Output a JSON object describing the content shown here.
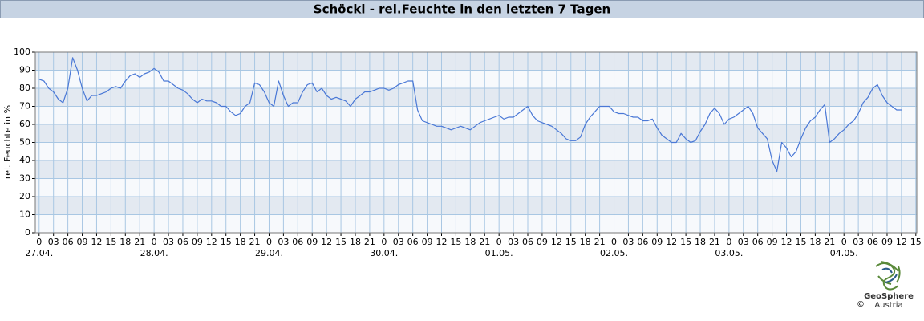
{
  "chart_data": {
    "type": "line",
    "title": "Schöckl - rel.Feuchte in den letzten 7 Tagen",
    "ylabel": "rel. Feuchte in %",
    "color": "#4a78d6",
    "grid": true,
    "ylim": [
      0,
      100
    ],
    "yticks": [
      0,
      10,
      20,
      30,
      40,
      50,
      60,
      70,
      80,
      90,
      100
    ],
    "xlim": [
      -0.8,
      183.2
    ],
    "xticks": [
      0,
      {
        "value": 3,
        "label": "03"
      },
      {
        "value": 6,
        "label": "06"
      },
      {
        "value": 9,
        "label": "09"
      },
      12,
      15,
      18,
      21,
      {
        "value": 24,
        "label": "0"
      },
      {
        "value": 27,
        "label": "03"
      },
      {
        "value": 30,
        "label": "06"
      },
      {
        "value": 33,
        "label": "09"
      },
      {
        "value": 36,
        "label": "12"
      },
      {
        "value": 39,
        "label": "15"
      },
      {
        "value": 42,
        "label": "18"
      },
      {
        "value": 45,
        "label": "21"
      },
      {
        "value": 48,
        "label": "0"
      },
      {
        "value": 51,
        "label": "03"
      },
      {
        "value": 54,
        "label": "06"
      },
      {
        "value": 57,
        "label": "09"
      },
      {
        "value": 60,
        "label": "12"
      },
      {
        "value": 63,
        "label": "15"
      },
      {
        "value": 66,
        "label": "18"
      },
      {
        "value": 69,
        "label": "21"
      },
      {
        "value": 72,
        "label": "0"
      },
      {
        "value": 75,
        "label": "03"
      },
      {
        "value": 78,
        "label": "06"
      },
      {
        "value": 81,
        "label": "09"
      },
      {
        "value": 84,
        "label": "12"
      },
      {
        "value": 87,
        "label": "15"
      },
      {
        "value": 90,
        "label": "18"
      },
      {
        "value": 93,
        "label": "21"
      },
      {
        "value": 96,
        "label": "0"
      },
      {
        "value": 99,
        "label": "03"
      },
      {
        "value": 102,
        "label": "06"
      },
      {
        "value": 105,
        "label": "09"
      },
      {
        "value": 108,
        "label": "12"
      },
      {
        "value": 111,
        "label": "15"
      },
      {
        "value": 114,
        "label": "18"
      },
      {
        "value": 117,
        "label": "21"
      },
      {
        "value": 120,
        "label": "0"
      },
      {
        "value": 123,
        "label": "03"
      },
      {
        "value": 126,
        "label": "06"
      },
      {
        "value": 129,
        "label": "09"
      },
      {
        "value": 132,
        "label": "12"
      },
      {
        "value": 135,
        "label": "15"
      },
      {
        "value": 138,
        "label": "18"
      },
      {
        "value": 141,
        "label": "21"
      },
      {
        "value": 144,
        "label": "0"
      },
      {
        "value": 147,
        "label": "03"
      },
      {
        "value": 150,
        "label": "06"
      },
      {
        "value": 153,
        "label": "09"
      },
      {
        "value": 156,
        "label": "12"
      },
      {
        "value": 159,
        "label": "15"
      },
      {
        "value": 162,
        "label": "18"
      },
      {
        "value": 165,
        "label": "21"
      },
      {
        "value": 168,
        "label": "0"
      },
      {
        "value": 171,
        "label": "03"
      },
      {
        "value": 174,
        "label": "06"
      },
      {
        "value": 177,
        "label": "09"
      },
      {
        "value": 180,
        "label": "12"
      },
      {
        "value": 183,
        "label": "15"
      }
    ],
    "day_labels": [
      {
        "value": 0,
        "label": "27.04."
      },
      {
        "value": 24,
        "label": "28.04."
      },
      {
        "value": 48,
        "label": "29.04."
      },
      {
        "value": 72,
        "label": "30.04."
      },
      {
        "value": 96,
        "label": "01.05."
      },
      {
        "value": 120,
        "label": "02.05."
      },
      {
        "value": 144,
        "label": "03.05."
      },
      {
        "value": 168,
        "label": "04.05."
      }
    ],
    "x": [
      0,
      1,
      2,
      3,
      4,
      5,
      6,
      7,
      8,
      9,
      10,
      11,
      12,
      13,
      14,
      15,
      16,
      17,
      18,
      19,
      20,
      21,
      22,
      23,
      24,
      25,
      26,
      27,
      28,
      29,
      30,
      31,
      32,
      33,
      34,
      35,
      36,
      37,
      38,
      39,
      40,
      41,
      42,
      43,
      44,
      45,
      46,
      47,
      48,
      49,
      50,
      51,
      52,
      53,
      54,
      55,
      56,
      57,
      58,
      59,
      60,
      61,
      62,
      63,
      64,
      65,
      66,
      67,
      68,
      69,
      70,
      71,
      72,
      73,
      74,
      75,
      76,
      77,
      78,
      79,
      80,
      81,
      82,
      83,
      84,
      85,
      86,
      87,
      88,
      89,
      90,
      91,
      92,
      93,
      94,
      95,
      96,
      97,
      98,
      99,
      100,
      101,
      102,
      103,
      104,
      105,
      106,
      107,
      108,
      109,
      110,
      111,
      112,
      113,
      114,
      115,
      116,
      117,
      118,
      119,
      120,
      121,
      122,
      123,
      124,
      125,
      126,
      127,
      128,
      129,
      130,
      131,
      132,
      133,
      134,
      135,
      136,
      137,
      138,
      139,
      140,
      141,
      142,
      143,
      144,
      145,
      146,
      147,
      148,
      149,
      150,
      151,
      152,
      153,
      154,
      155,
      156,
      157,
      158,
      159,
      160,
      161,
      162,
      163,
      164,
      165,
      166,
      167,
      168,
      169,
      170,
      171,
      172,
      173,
      174,
      175,
      176,
      177,
      178,
      179,
      180
    ],
    "values": [
      85,
      84,
      80,
      78,
      74,
      72,
      80,
      97,
      90,
      80,
      73,
      76,
      76,
      77,
      78,
      80,
      81,
      80,
      84,
      87,
      88,
      86,
      88,
      89,
      91,
      89,
      84,
      84,
      82,
      80,
      79,
      77,
      74,
      72,
      74,
      73,
      73,
      72,
      70,
      70,
      67,
      65,
      66,
      70,
      72,
      83,
      82,
      78,
      72,
      70,
      84,
      76,
      70,
      72,
      72,
      78,
      82,
      83,
      78,
      80,
      76,
      74,
      75,
      74,
      73,
      70,
      74,
      76,
      78,
      78,
      79,
      80,
      80,
      79,
      80,
      82,
      83,
      84,
      84,
      68,
      62,
      61,
      60,
      59,
      59,
      58,
      57,
      58,
      59,
      58,
      57,
      59,
      61,
      62,
      63,
      64,
      65,
      63,
      64,
      64,
      66,
      68,
      70,
      65,
      62,
      61,
      60,
      59,
      57,
      55,
      52,
      51,
      51,
      53,
      60,
      64,
      67,
      70,
      70,
      70,
      67,
      66,
      66,
      65,
      64,
      64,
      62,
      62,
      63,
      58,
      54,
      52,
      50,
      50,
      55,
      52,
      50,
      51,
      56,
      60,
      66,
      69,
      66,
      60,
      63,
      64,
      66,
      68,
      70,
      66,
      58,
      55,
      52,
      40,
      34,
      50,
      47,
      42,
      45,
      52,
      58,
      62,
      64,
      68,
      71,
      50,
      52,
      55,
      57,
      60,
      62,
      66,
      72,
      75,
      80,
      82,
      76,
      72,
      70,
      68,
      68
    ]
  },
  "logo": {
    "name": "GeoSphere",
    "sub": "Austria",
    "copyright": "©"
  }
}
